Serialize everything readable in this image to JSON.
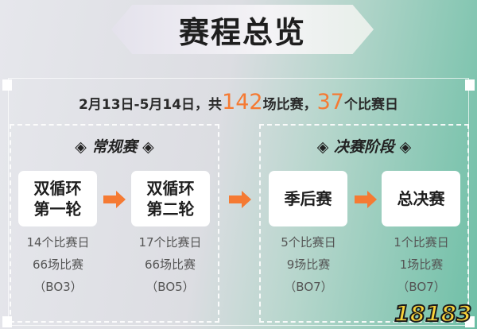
{
  "title": "赛程总览",
  "summary": {
    "prefix": "2月13日-5月14日，共",
    "matches": "142",
    "mid": "场比赛，",
    "days": "37",
    "suffix": "个比赛日"
  },
  "stages": [
    {
      "label": "常规赛",
      "rounds": [
        {
          "name_line1": "双循环",
          "name_line2": "第一轮",
          "days": "14个比赛日",
          "matches": "66场比赛",
          "format": "（BO3）"
        },
        {
          "name_line1": "双循环",
          "name_line2": "第二轮",
          "days": "17个比赛日",
          "matches": "66场比赛",
          "format": "（BO5）"
        }
      ]
    },
    {
      "label": "决赛阶段",
      "rounds": [
        {
          "name_line1": "季后赛",
          "days": "5个比赛日",
          "matches": "9场比赛",
          "format": "（BO7）"
        },
        {
          "name_line1": "总决赛",
          "days": "1个比赛日",
          "matches": "1场比赛",
          "format": "（BO7）"
        }
      ]
    }
  ],
  "watermark": "18183",
  "colors": {
    "accent": "#f57a33",
    "teal": "#6ebfa6"
  }
}
